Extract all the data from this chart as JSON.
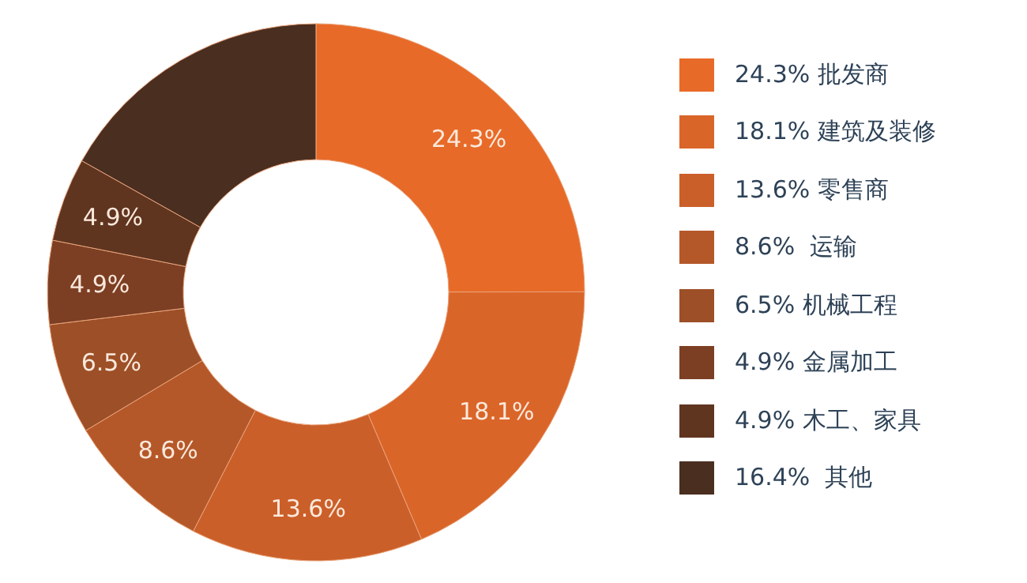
{
  "chart_data": {
    "type": "donut",
    "categories": [
      "24.3% 批发商",
      "18.1% 建筑及装修",
      "13.6% 零售商",
      "8.6%  运输",
      "6.5% 机械工程",
      "4.9% 金属加工",
      "4.9% 木工、家具",
      "16.4%  其他"
    ],
    "values": [
      24.3,
      18.1,
      13.6,
      8.6,
      6.5,
      4.9,
      4.9,
      16.4
    ],
    "value_labels": [
      "24.3%",
      "18.1%",
      "13.6%",
      "8.6%",
      "6.5%",
      "4.9%",
      "4.9%",
      null
    ],
    "colors": [
      "#e86a28",
      "#da6529",
      "#cb5f29",
      "#b55829",
      "#9d4f27",
      "#7c3f24",
      "#5f3520",
      "#4a2e20"
    ],
    "legend": "right"
  }
}
